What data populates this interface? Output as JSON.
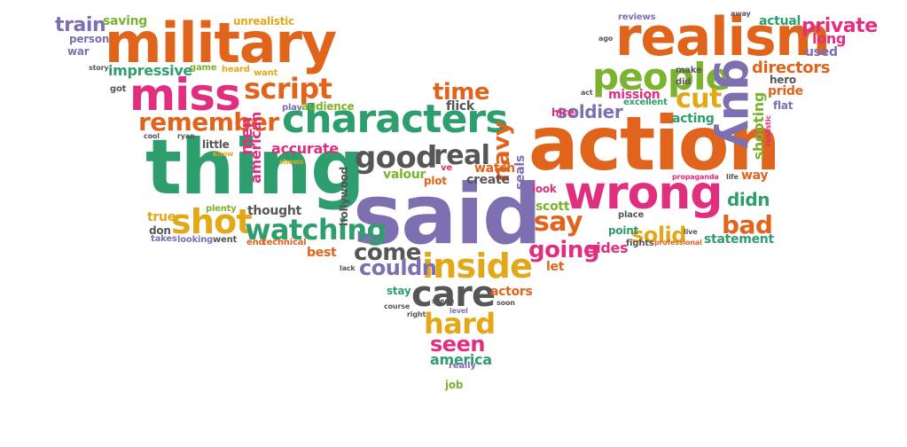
{
  "palette": {
    "orange": "#e0641c",
    "green": "#2e9e6e",
    "pink": "#e02f7f",
    "purple": "#7d6fb0",
    "gray": "#565656",
    "yellow": "#e3a817",
    "lime": "#7bb32e"
  },
  "words": [
    {
      "text": "military",
      "color": "orange"
    },
    {
      "text": "realism",
      "color": "orange"
    },
    {
      "text": "action",
      "color": "orange"
    },
    {
      "text": "said",
      "color": "purple"
    },
    {
      "text": "thing",
      "color": "green"
    },
    {
      "text": "characters",
      "color": "green"
    },
    {
      "text": "miss",
      "color": "pink"
    },
    {
      "text": "wrong",
      "color": "pink"
    },
    {
      "text": "people",
      "color": "lime"
    },
    {
      "text": "guy",
      "color": "purple"
    },
    {
      "text": "script",
      "color": "orange"
    },
    {
      "text": "shot",
      "color": "yellow"
    },
    {
      "text": "inside",
      "color": "yellow"
    },
    {
      "text": "care",
      "color": "gray"
    },
    {
      "text": "good",
      "color": "gray"
    },
    {
      "text": "real",
      "color": "gray"
    },
    {
      "text": "watching",
      "color": "green"
    },
    {
      "text": "remember",
      "color": "orange"
    },
    {
      "text": "time",
      "color": "orange"
    },
    {
      "text": "say",
      "color": "orange"
    },
    {
      "text": "cut",
      "color": "yellow"
    },
    {
      "text": "bad",
      "color": "orange"
    },
    {
      "text": "hard",
      "color": "yellow"
    },
    {
      "text": "going",
      "color": "pink"
    },
    {
      "text": "solid",
      "color": "yellow"
    },
    {
      "text": "come",
      "color": "gray"
    },
    {
      "text": "couldn",
      "color": "purple"
    },
    {
      "text": "seen",
      "color": "pink"
    },
    {
      "text": "navy",
      "color": "orange"
    },
    {
      "text": "private",
      "color": "pink"
    },
    {
      "text": "train",
      "color": "purple"
    },
    {
      "text": "soldier",
      "color": "purple"
    },
    {
      "text": "didn",
      "color": "green"
    },
    {
      "text": "directors",
      "color": "orange"
    },
    {
      "text": "shooting",
      "color": "lime"
    },
    {
      "text": "men",
      "color": "pink"
    },
    {
      "text": "impressive",
      "color": "green"
    },
    {
      "text": "america",
      "color": "green"
    },
    {
      "text": "saving",
      "color": "lime"
    },
    {
      "text": "unrealistic",
      "color": "yellow"
    },
    {
      "text": "person",
      "color": "purple"
    },
    {
      "text": "war",
      "color": "purple"
    },
    {
      "text": "got",
      "color": "gray"
    },
    {
      "text": "story",
      "color": "gray"
    },
    {
      "text": "game",
      "color": "lime"
    },
    {
      "text": "heard",
      "color": "yellow"
    },
    {
      "text": "want",
      "color": "yellow"
    },
    {
      "text": "audience",
      "color": "lime"
    },
    {
      "text": "play",
      "color": "purple"
    },
    {
      "text": "american",
      "color": "pink"
    },
    {
      "text": "flick",
      "color": "gray"
    },
    {
      "text": "cool",
      "color": "gray"
    },
    {
      "text": "ryan",
      "color": "gray"
    },
    {
      "text": "little",
      "color": "gray"
    },
    {
      "text": "know",
      "color": "yellow"
    },
    {
      "text": "accurate",
      "color": "pink"
    },
    {
      "text": "shows",
      "color": "yellow"
    },
    {
      "text": "thought",
      "color": "gray"
    },
    {
      "text": "plenty",
      "color": "lime"
    },
    {
      "text": "true",
      "color": "yellow"
    },
    {
      "text": "don",
      "color": "gray"
    },
    {
      "text": "takes",
      "color": "purple"
    },
    {
      "text": "looking",
      "color": "purple"
    },
    {
      "text": "went",
      "color": "gray"
    },
    {
      "text": "end",
      "color": "orange"
    },
    {
      "text": "technical",
      "color": "orange"
    },
    {
      "text": "best",
      "color": "orange"
    },
    {
      "text": "lack",
      "color": "gray"
    },
    {
      "text": "hollywood",
      "color": "gray"
    },
    {
      "text": "valour",
      "color": "lime"
    },
    {
      "text": "ve",
      "color": "pink"
    },
    {
      "text": "plot",
      "color": "orange"
    },
    {
      "text": "watch",
      "color": "orange"
    },
    {
      "text": "create",
      "color": "gray"
    },
    {
      "text": "seals",
      "color": "purple"
    },
    {
      "text": "scott",
      "color": "lime"
    },
    {
      "text": "look",
      "color": "pink"
    },
    {
      "text": "hire",
      "color": "pink"
    },
    {
      "text": "stay",
      "color": "green"
    },
    {
      "text": "actors",
      "color": "orange"
    },
    {
      "text": "course",
      "color": "gray"
    },
    {
      "text": "scene",
      "color": "gray"
    },
    {
      "text": "right",
      "color": "gray"
    },
    {
      "text": "level",
      "color": "purple"
    },
    {
      "text": "soon",
      "color": "gray"
    },
    {
      "text": "really",
      "color": "purple"
    },
    {
      "text": "job",
      "color": "lime"
    },
    {
      "text": "let",
      "color": "orange"
    },
    {
      "text": "sides",
      "color": "pink"
    },
    {
      "text": "point",
      "color": "green"
    },
    {
      "text": "place",
      "color": "gray"
    },
    {
      "text": "fights",
      "color": "gray"
    },
    {
      "text": "professional",
      "color": "orange"
    },
    {
      "text": "live",
      "color": "gray"
    },
    {
      "text": "statement",
      "color": "green"
    },
    {
      "text": "way",
      "color": "orange"
    },
    {
      "text": "propaganda",
      "color": "pink"
    },
    {
      "text": "life",
      "color": "gray"
    },
    {
      "text": "acting",
      "color": "green"
    },
    {
      "text": "excellent",
      "color": "green"
    },
    {
      "text": "mission",
      "color": "pink"
    },
    {
      "text": "act",
      "color": "gray"
    },
    {
      "text": "make",
      "color": "gray"
    },
    {
      "text": "did",
      "color": "gray"
    },
    {
      "text": "hero",
      "color": "gray"
    },
    {
      "text": "pride",
      "color": "orange"
    },
    {
      "text": "flat",
      "color": "purple"
    },
    {
      "text": "realistic",
      "color": "pink"
    },
    {
      "text": "reviews",
      "color": "purple"
    },
    {
      "text": "ago",
      "color": "gray"
    },
    {
      "text": "away",
      "color": "gray"
    },
    {
      "text": "actual",
      "color": "green"
    },
    {
      "text": "long",
      "color": "pink"
    },
    {
      "text": "used",
      "color": "purple"
    }
  ]
}
